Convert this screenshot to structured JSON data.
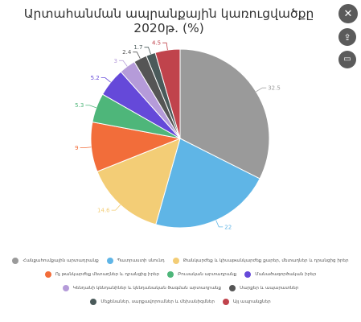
{
  "chart_data": {
    "type": "pie",
    "title": "Արտահանման ապրանքային կառուցվածքը 2020թ. (%)",
    "categories": [
      "Հանքահումքային արտադրանք",
      "Պատրաստի սնունդ",
      "Թանկարժեք և կիսաթանկարժեք քարեր, մետաղներ և դրանցից իրեր",
      "Ոչ թանկարժեք մետաղներ և դրանցից իրեր",
      "Բուսական արտադրանք",
      "Մանածագործական իրեր",
      "Կենդանի կենդանիներ և կենդանական ծագման արտադրանք",
      "Սարքեր և ապարատներ",
      "Մեքենաներ, սարքավորումներ և մեխանիզմներ",
      "Այլ ապրանքներ"
    ],
    "values": [
      32.5,
      22,
      14.6,
      9,
      5.3,
      5.2,
      3,
      2.4,
      1.7,
      4.5
    ],
    "labels": [
      "32.5",
      "22",
      "14.6",
      "9",
      "5.3",
      "5.2",
      "3",
      "2.4",
      "1.7",
      "4.5"
    ],
    "colors": [
      "#9a9a9a",
      "#5fb5e6",
      "#f3cd76",
      "#f26d3a",
      "#4eb67a",
      "#6549d9",
      "#b59bd9",
      "#555555",
      "#4a5a5a",
      "#c0434c"
    ],
    "legend_position": "bottom"
  },
  "toolbar": {
    "close_icon": "✕",
    "share_icon": "⇪",
    "embed_icon": "▭"
  }
}
